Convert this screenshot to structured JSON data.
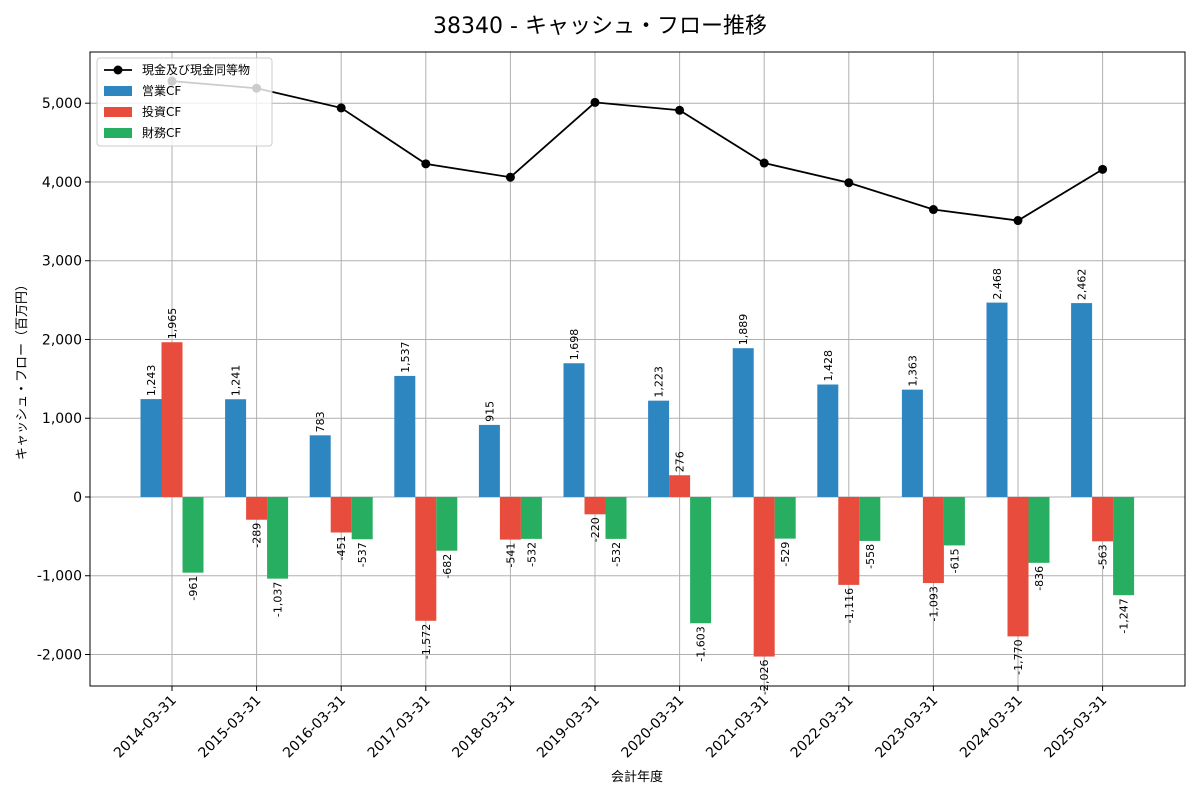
{
  "chart_data": {
    "type": "bar",
    "title": "38340 - キャッシュ・フロー推移",
    "xlabel": "会計年度",
    "ylabel": "キャッシュ・フロー（百万円）",
    "ylim": [
      -2400,
      5650
    ],
    "yticks": [
      -2000,
      -1000,
      0,
      1000,
      2000,
      3000,
      4000,
      5000
    ],
    "ytick_labels": [
      "-2,000",
      "-1,000",
      "0",
      "1,000",
      "2,000",
      "3,000",
      "4,000",
      "5,000"
    ],
    "grid": true,
    "legend_position": "top-left",
    "categories": [
      "2014-03-31",
      "2015-03-31",
      "2016-03-31",
      "2017-03-31",
      "2018-03-31",
      "2019-03-31",
      "2020-03-31",
      "2021-03-31",
      "2022-03-31",
      "2023-03-31",
      "2024-03-31",
      "2025-03-31"
    ],
    "series": [
      {
        "name": "営業CF",
        "type": "bar",
        "color": "#2e86c1",
        "values": [
          1243,
          1241,
          783,
          1537,
          915,
          1698,
          1223,
          1889,
          1428,
          1363,
          2468,
          2462
        ],
        "labels": [
          "1,243",
          "1,241",
          "783",
          "1,537",
          "915",
          "1,698",
          "1,223",
          "1,889",
          "1,428",
          "1,363",
          "2,468",
          "2,462"
        ]
      },
      {
        "name": "投資CF",
        "type": "bar",
        "color": "#e74c3c",
        "values": [
          1965,
          -289,
          -451,
          -1572,
          -541,
          -220,
          276,
          -2026,
          -1116,
          -1093,
          -1770,
          -563
        ],
        "labels": [
          "1,965",
          "-289",
          "-451",
          "-1,572",
          "-541",
          "-220",
          "276",
          "-2,026",
          "-1,116",
          "-1,093",
          "-1,770",
          "-563"
        ]
      },
      {
        "name": "財務CF",
        "type": "bar",
        "color": "#27ae60",
        "values": [
          -961,
          -1037,
          -537,
          -682,
          -532,
          -532,
          -1603,
          -529,
          -558,
          -615,
          -836,
          -1247
        ],
        "labels": [
          "-961",
          "-1,037",
          "-537",
          "-682",
          "-532",
          "-532",
          "-1,603",
          "-529",
          "-558",
          "-615",
          "-836",
          "-1,247"
        ]
      },
      {
        "name": "現金及び現金同等物",
        "type": "line",
        "color": "#000000",
        "values": [
          5280,
          5190,
          4940,
          4230,
          4060,
          5010,
          4910,
          4240,
          3990,
          3650,
          3510,
          4160
        ]
      }
    ]
  }
}
